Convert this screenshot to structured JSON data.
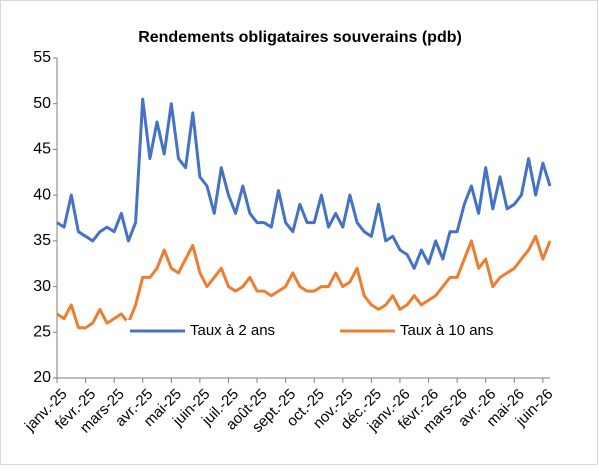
{
  "chart_data": {
    "type": "line",
    "title": "Rendements obligataires souverains (pdb)",
    "categories": [
      "janv.-25",
      null,
      null,
      null,
      "févr.-25",
      null,
      null,
      null,
      "mars-25",
      null,
      null,
      null,
      "avr.-25",
      null,
      null,
      null,
      "mai-25",
      null,
      null,
      null,
      "juin-25",
      null,
      null,
      null,
      "juil.-25",
      null,
      null,
      null,
      "août-25",
      null,
      null,
      null,
      "sept.-25",
      null,
      null,
      null,
      "oct.-25",
      null,
      null,
      null,
      "nov.-25",
      null,
      null,
      null,
      "déc.-25",
      null,
      null,
      null,
      "janv.-26",
      null,
      null,
      null,
      "févr.-26",
      null,
      null,
      null,
      "mars-26",
      null,
      null,
      null,
      "avr.-26",
      null,
      null,
      null,
      "mai-26",
      null,
      null,
      null,
      "juin-26",
      null
    ],
    "series": [
      {
        "name": "Taux à 2 ans",
        "color": "#4472c4",
        "values": [
          37,
          36.5,
          40,
          36,
          35.5,
          35,
          36,
          36.5,
          36,
          38,
          35,
          37,
          50.5,
          44,
          48,
          44.5,
          50,
          44,
          43,
          49,
          42,
          41,
          38,
          43,
          40,
          38,
          41,
          38,
          37,
          37,
          36.5,
          40.5,
          37,
          36,
          39,
          37,
          37,
          40,
          36.5,
          38,
          36.5,
          40,
          37,
          36,
          35.5,
          39,
          35,
          35.5,
          34,
          33.5,
          32,
          34,
          32.5,
          35,
          33,
          36,
          36,
          39,
          41,
          38,
          43,
          38.5,
          42,
          38.5,
          39,
          40,
          44,
          40,
          43.5,
          41
        ]
      },
      {
        "name": "Taux à 10 ans",
        "color": "#ed7d31",
        "values": [
          27,
          26.5,
          28,
          25.5,
          25.5,
          26,
          27.5,
          26,
          26.5,
          27,
          26,
          28,
          31,
          31,
          32,
          34,
          32,
          31.5,
          33,
          34.5,
          31.5,
          30,
          31,
          32,
          30,
          29.5,
          30,
          31,
          29.5,
          29.5,
          29,
          29.5,
          30,
          31.5,
          30,
          29.5,
          29.5,
          30,
          30,
          31.5,
          30,
          30.5,
          32,
          29,
          28,
          27.5,
          28,
          29,
          27.5,
          28,
          29,
          28,
          28.5,
          29,
          30,
          31,
          31,
          33,
          35,
          32,
          33,
          30,
          31,
          31.5,
          32,
          33,
          34,
          35.5,
          33,
          35
        ]
      }
    ],
    "ylim": [
      20,
      55
    ],
    "yticks": [
      20,
      25,
      30,
      35,
      40,
      45,
      50,
      55
    ]
  }
}
